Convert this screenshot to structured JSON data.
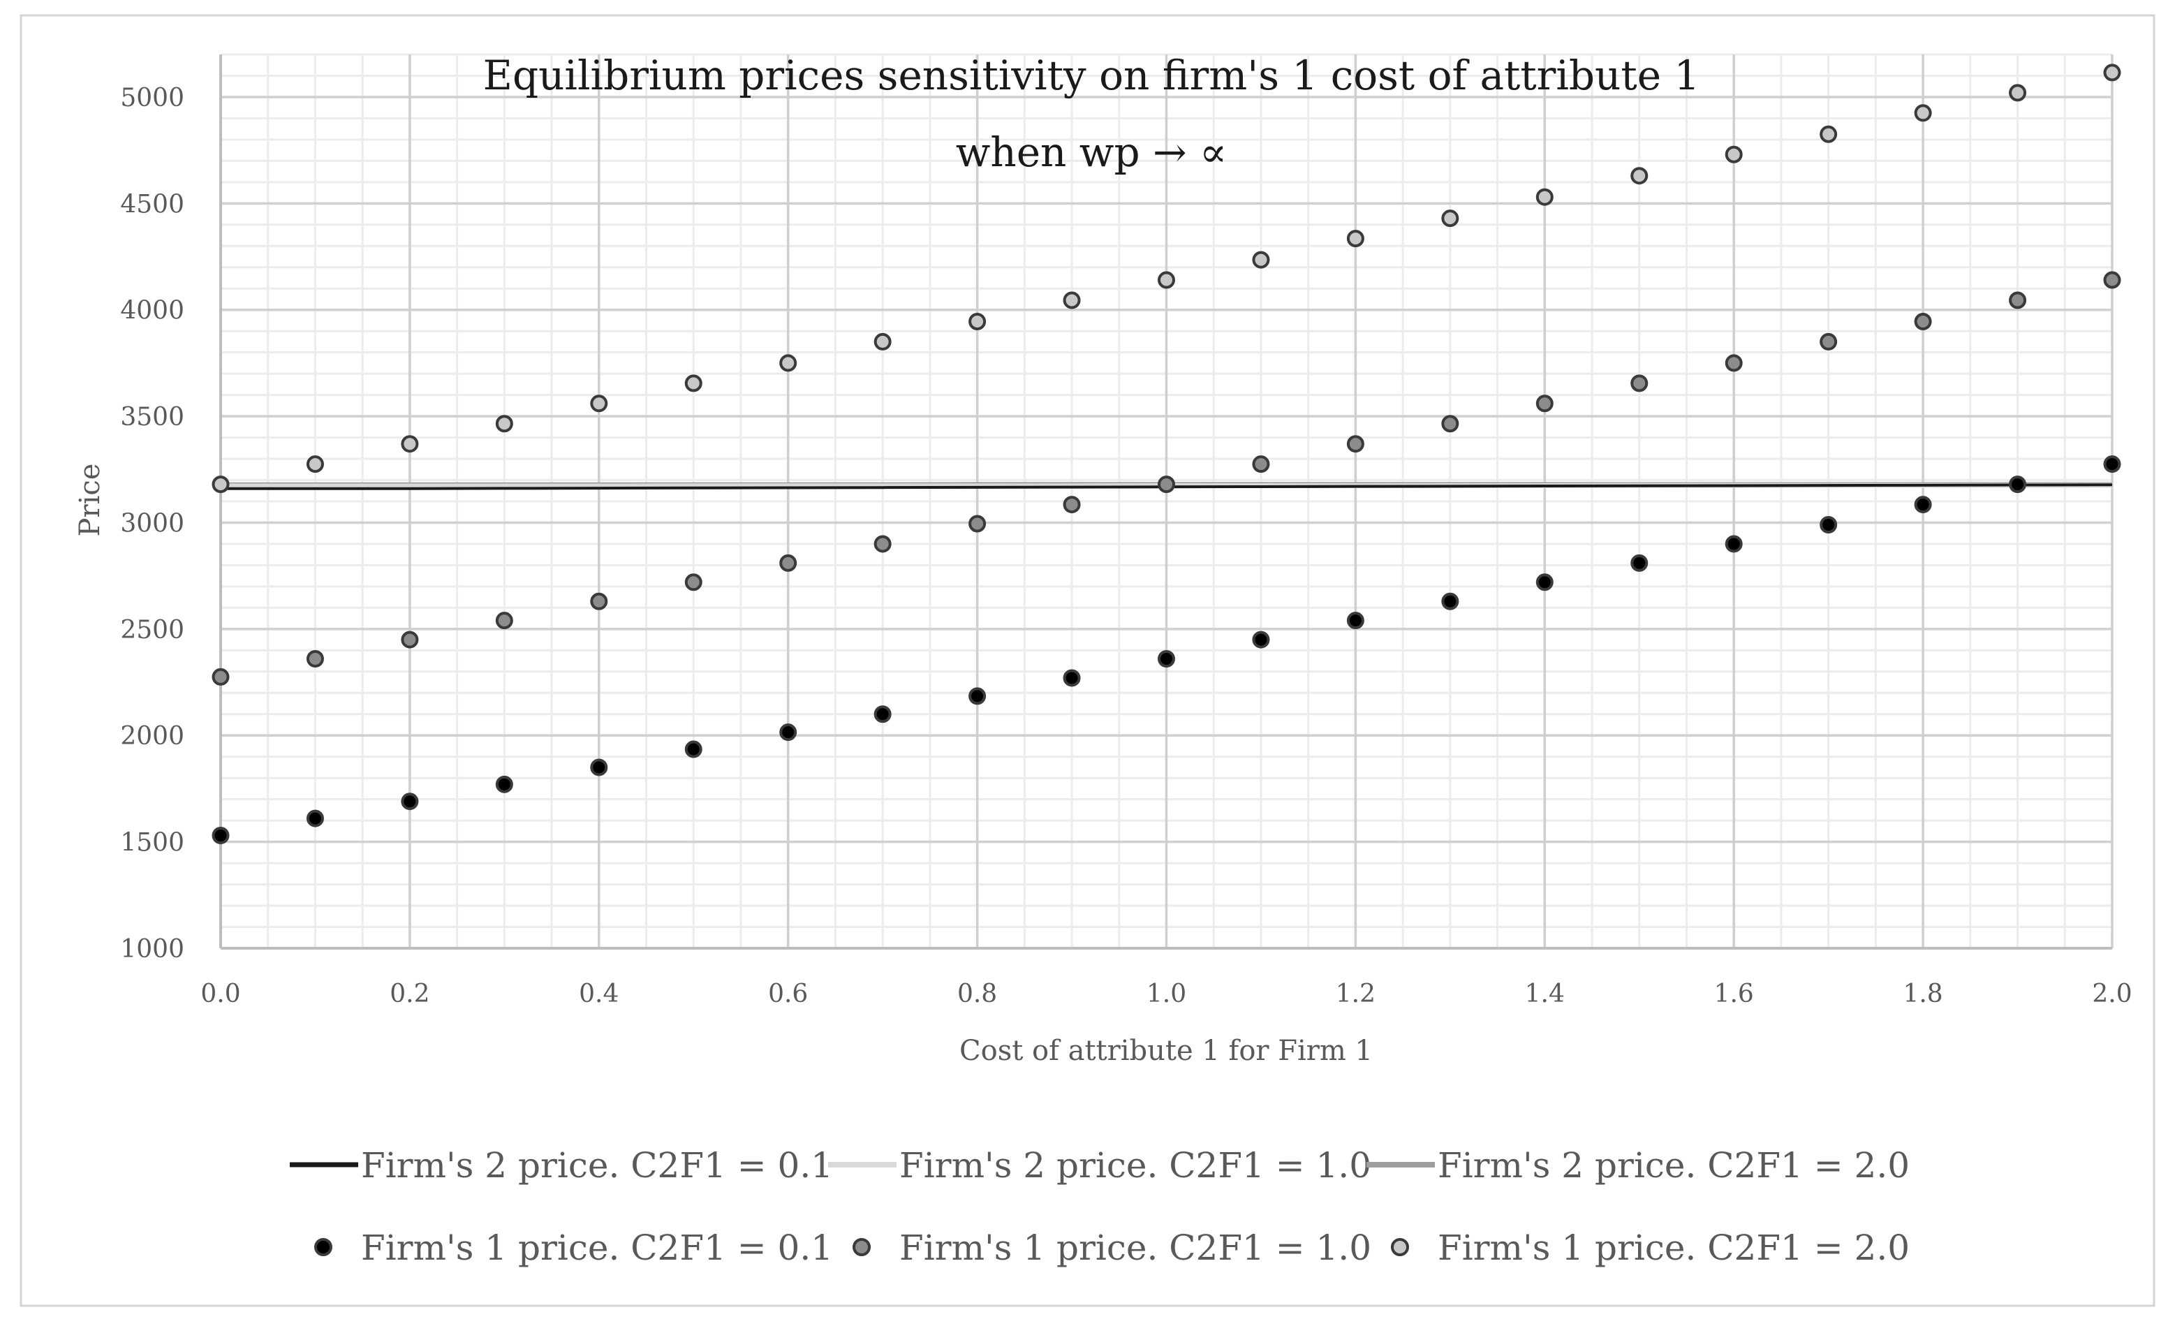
{
  "chart_data": {
    "type": "scatter",
    "title": "Equilibrium prices sensitivity on firm's 1 cost of attribute 1",
    "subtitle": "when wp → ∝",
    "xlabel": "Cost of attribute 1 for Firm 1",
    "ylabel": "Price",
    "xlim": [
      0.0,
      2.0
    ],
    "ylim": [
      1000,
      5200
    ],
    "x_ticks": [
      "0.0",
      "0.2",
      "0.4",
      "0.6",
      "0.8",
      "1.0",
      "1.2",
      "1.4",
      "1.6",
      "1.8",
      "2.0"
    ],
    "y_ticks": [
      "1000",
      "1500",
      "2000",
      "2500",
      "3000",
      "3500",
      "4000",
      "4500",
      "5000"
    ],
    "x": [
      0.0,
      0.1,
      0.2,
      0.3,
      0.4,
      0.5,
      0.6,
      0.7,
      0.8,
      0.9,
      1.0,
      1.1,
      1.2,
      1.3,
      1.4,
      1.5,
      1.6,
      1.7,
      1.8,
      1.9,
      2.0
    ],
    "grid": true,
    "legend_position": "bottom",
    "series": [
      {
        "name": "Firm's 2 price. C2F1 = 0.1",
        "kind": "line",
        "color": "#1a1a1a",
        "values": [
          3160,
          3160,
          3160,
          3161,
          3162,
          3163,
          3164,
          3165,
          3166,
          3167,
          3168,
          3169,
          3170,
          3171,
          3172,
          3173,
          3174,
          3175,
          3176,
          3177,
          3178
        ]
      },
      {
        "name": "Firm's 2 price. C2F1 = 1.0",
        "kind": "line",
        "color": "#d9d9d9",
        "values": [
          3172,
          3172,
          3172,
          3172,
          3172,
          3173,
          3173,
          3173,
          3173,
          3173,
          3174,
          3174,
          3174,
          3174,
          3174,
          3175,
          3175,
          3175,
          3175,
          3175,
          3176
        ]
      },
      {
        "name": "Firm's 2 price. C2F1 = 2.0",
        "kind": "line",
        "color": "#9e9e9e",
        "values": [
          3178,
          3178,
          3178,
          3178,
          3178,
          3178,
          3178,
          3178,
          3179,
          3179,
          3179,
          3179,
          3179,
          3179,
          3179,
          3179,
          3179,
          3179,
          3179,
          3179,
          3179
        ]
      },
      {
        "name": "Firm's 1 price. C2F1 = 0.1",
        "kind": "scatter",
        "color": "#000000",
        "values": [
          1530,
          1610,
          1690,
          1770,
          1850,
          1935,
          2015,
          2100,
          2185,
          2270,
          2360,
          2450,
          2540,
          2630,
          2720,
          2810,
          2900,
          2990,
          3085,
          3180,
          3275
        ]
      },
      {
        "name": "Firm's 1 price. C2F1 = 1.0",
        "kind": "scatter",
        "color": "#8c8c8c",
        "values": [
          2275,
          2360,
          2450,
          2540,
          2630,
          2720,
          2810,
          2900,
          2995,
          3085,
          3180,
          3275,
          3370,
          3465,
          3560,
          3655,
          3750,
          3850,
          3945,
          4045,
          4140
        ]
      },
      {
        "name": "Firm's 1 price. C2F1 = 2.0",
        "kind": "scatter",
        "color": "#c8c8c8",
        "values": [
          3180,
          3275,
          3370,
          3465,
          3560,
          3655,
          3750,
          3850,
          3945,
          4045,
          4140,
          4235,
          4335,
          4430,
          4530,
          4630,
          4730,
          4825,
          4925,
          5020,
          5115
        ]
      }
    ]
  }
}
